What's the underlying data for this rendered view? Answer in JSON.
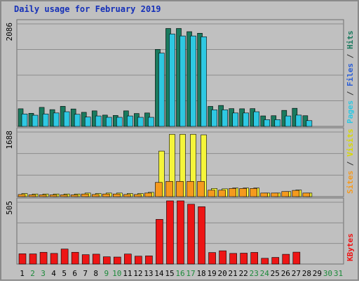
{
  "chart_data": {
    "type": "bar",
    "title": "Daily usage for February 2019",
    "categories": [
      "1",
      "2",
      "3",
      "4",
      "5",
      "6",
      "7",
      "8",
      "9",
      "10",
      "11",
      "12",
      "13",
      "14",
      "15",
      "16",
      "17",
      "18",
      "19",
      "20",
      "21",
      "22",
      "23",
      "24",
      "25",
      "26",
      "27",
      "28",
      "29",
      "30",
      "31"
    ],
    "weekend_days": [
      "2",
      "3",
      "9",
      "10",
      "16",
      "17",
      "23",
      "24",
      "30",
      "31"
    ],
    "panels": [
      {
        "id": "top",
        "max_label": "2086",
        "ymax": 2086,
        "series": [
          {
            "name": "Hits",
            "color": "#1a7a5e",
            "values": [
              354,
              263,
              382,
              337,
              403,
              350,
              283,
              312,
              227,
              220,
              312,
              259,
              270,
              1546,
              1966,
              1966,
              1902,
              1870,
              402,
              421,
              357,
              354,
              357,
              211,
              215,
              322,
              364,
              215,
              0,
              0,
              0
            ]
          },
          {
            "name": "Files",
            "color": "#2a5ed6",
            "values": [
              0,
              0,
              0,
              0,
              0,
              0,
              0,
              0,
              0,
              0,
              0,
              0,
              0,
              0,
              0,
              0,
              0,
              0,
              0,
              0,
              0,
              0,
              0,
              0,
              0,
              0,
              0,
              0,
              0,
              0,
              0
            ]
          },
          {
            "name": "Pages",
            "color": "#2ec8e2",
            "values": [
              250,
              225,
              250,
              270,
              295,
              243,
              188,
              210,
              183,
              183,
              210,
              183,
              183,
              1472,
              1855,
              1816,
              1816,
              1799,
              333,
              333,
              270,
              270,
              295,
              135,
              135,
              210,
              227,
              116,
              0,
              0,
              0
            ]
          }
        ],
        "legend": [
          {
            "text": "Pages",
            "color": "#2ec8e2"
          },
          {
            "text": " / ",
            "color": "#333333"
          },
          {
            "text": "Files",
            "color": "#2a5ed6"
          },
          {
            "text": " / ",
            "color": "#333333"
          },
          {
            "text": "Hits",
            "color": "#1a7a5e"
          }
        ]
      },
      {
        "id": "mid",
        "max_label": "1688",
        "ymax": 1688,
        "series": [
          {
            "name": "Visits",
            "color": "#f5f53a",
            "values": [
              80,
              68,
              68,
              68,
              68,
              68,
              92,
              80,
              92,
              92,
              80,
              80,
              110,
              1165,
              1594,
              1594,
              1594,
              1580,
              210,
              200,
              220,
              220,
              220,
              92,
              92,
              130,
              170,
              92,
              0,
              0,
              0
            ]
          },
          {
            "name": "Sites",
            "color": "#f59a1e",
            "values": [
              55,
              45,
              45,
              45,
              45,
              45,
              68,
              55,
              68,
              68,
              55,
              55,
              92,
              363,
              390,
              390,
              390,
              390,
              165,
              165,
              210,
              210,
              210,
              92,
              92,
              130,
              160,
              92,
              0,
              0,
              0
            ]
          }
        ],
        "legend": [
          {
            "text": "Sites",
            "color": "#f59a1e"
          },
          {
            "text": " / ",
            "color": "#333333"
          },
          {
            "text": "Visits",
            "color": "#d8d800"
          }
        ]
      },
      {
        "id": "bot",
        "max_label": "505",
        "ymax": 505,
        "series": [
          {
            "name": "KBytes",
            "color": "#ee1515",
            "values": [
              82,
              81,
              94,
              85,
              120,
              94,
              75,
              79,
              58,
              56,
              80,
              63,
              65,
              357,
              505,
              505,
              478,
              458,
              92,
              106,
              85,
              87,
              93,
              46,
              53,
              78,
              95,
              0,
              0,
              0,
              0
            ]
          }
        ],
        "legend": [
          {
            "text": "KBytes",
            "color": "#ee1515"
          }
        ]
      }
    ]
  }
}
